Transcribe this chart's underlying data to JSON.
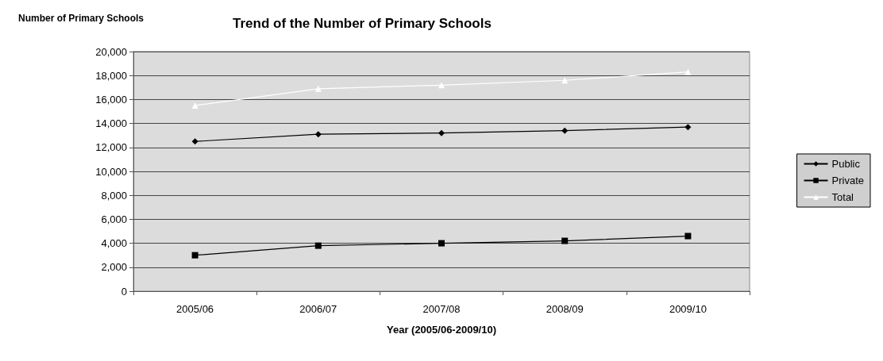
{
  "chart_data": {
    "type": "line",
    "title": "Trend of the Number of Primary Schools",
    "ylabel": "Number of Primary Schools",
    "xlabel": "Year (2005/06-2009/10)",
    "categories": [
      "2005/06",
      "2006/07",
      "2007/08",
      "2008/09",
      "2009/10"
    ],
    "series": [
      {
        "name": "Public",
        "color": "#000000",
        "marker": "diamond",
        "values": [
          12500,
          13100,
          13200,
          13400,
          13700
        ]
      },
      {
        "name": "Private",
        "color": "#000000",
        "marker": "square",
        "values": [
          3000,
          3800,
          4000,
          4200,
          4600
        ]
      },
      {
        "name": "Total",
        "color": "#ffffff",
        "marker": "triangle",
        "values": [
          15500,
          16900,
          17200,
          17600,
          18300
        ]
      }
    ],
    "ylim": [
      0,
      20000
    ],
    "yticks": [
      0,
      {
        "value": 2000,
        "label": "2,000"
      },
      {
        "value": 4000,
        "label": "4,000"
      },
      {
        "value": 6000,
        "label": "6,000"
      },
      {
        "value": 8000,
        "label": "8,000"
      },
      {
        "value": 10000,
        "label": "10,000"
      },
      {
        "value": 12000,
        "label": "12,000"
      },
      {
        "value": 14000,
        "label": "14,000"
      },
      {
        "value": 16000,
        "label": "16,000"
      },
      {
        "value": 18000,
        "label": "18,000"
      },
      {
        "value": 20000,
        "label": "20,000"
      }
    ],
    "grid": "y",
    "legend": "right"
  }
}
